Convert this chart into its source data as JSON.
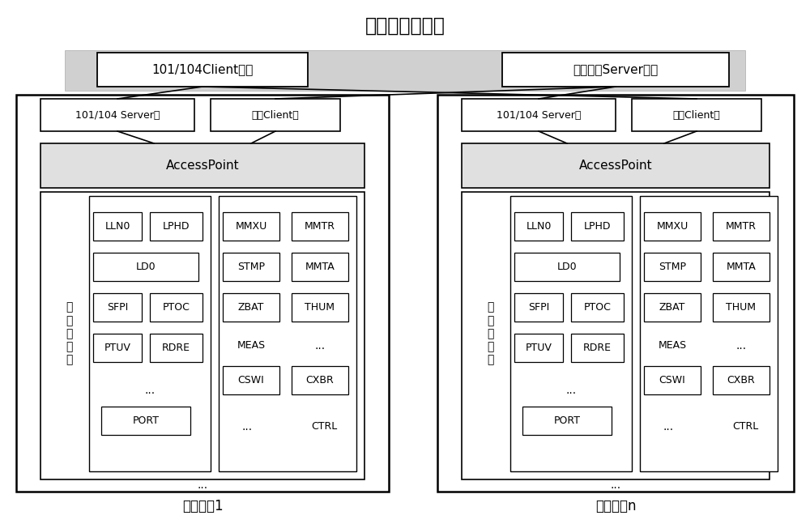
{
  "title": "配电自动化主站",
  "top_left_box": "101/104Client端口",
  "top_right_box": "注册服务Server端口",
  "terminal1_label": "配电终端1",
  "terminaln_label": "配电终端n",
  "t1_server_box": "101/104 Server端",
  "t1_client_box": "注册Client端",
  "tn_server_box": "101/104 Server端",
  "tn_client_box": "注册Client端",
  "accesspoint_label": "AccessPoint",
  "func_label": "功\n能\n自\n描\n述",
  "bg_color": "#ffffff",
  "gray_fill": "#d8d8d8",
  "light_gray": "#e8e8e8",
  "line_color": "#000000"
}
